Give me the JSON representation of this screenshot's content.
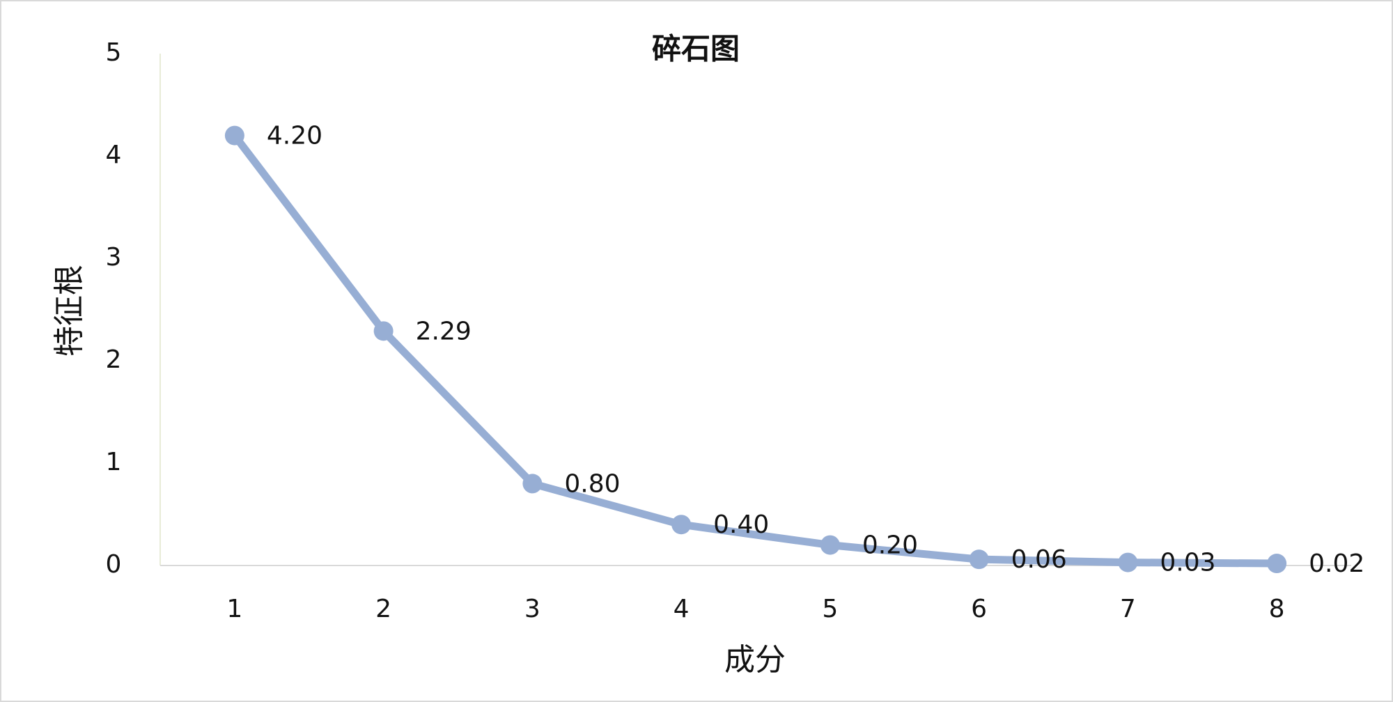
{
  "chart_data": {
    "type": "line",
    "title": "碎石图",
    "x_label": "成分",
    "y_label": "特征根",
    "categories": [
      "1",
      "2",
      "3",
      "4",
      "5",
      "6",
      "7",
      "8"
    ],
    "values": [
      4.2,
      2.29,
      0.8,
      0.4,
      0.2,
      0.06,
      0.03,
      0.02
    ],
    "value_labels": [
      "4.20",
      "2.29",
      "0.80",
      "0.40",
      "0.20",
      "0.06",
      "0.03",
      "0.02"
    ],
    "color": "#97aed4",
    "ylim": [
      0,
      5
    ],
    "yticks": [
      0,
      1,
      2,
      3,
      4,
      5
    ],
    "grid": false
  }
}
